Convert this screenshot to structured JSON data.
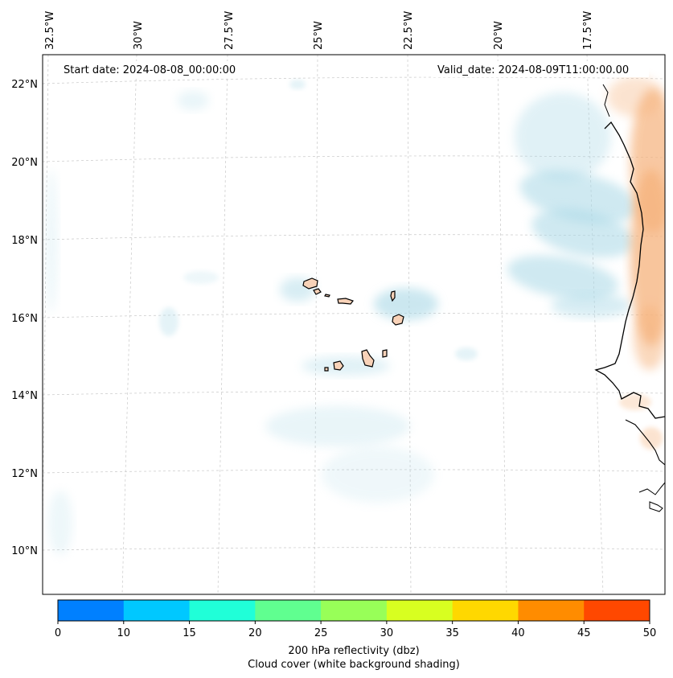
{
  "map": {
    "start_date": "Start date: 2024-08-08_00:00:00",
    "valid_date": "Valid_date: 2024-08-09T11:00:00.00",
    "longitude_labels": [
      "32.5°W",
      "30°W",
      "27.5°W",
      "25°W",
      "22.5°W",
      "20°W",
      "17.5°W"
    ],
    "latitude_labels": [
      "22°N",
      "20°N",
      "18°N",
      "16°N",
      "14°N",
      "12°N",
      "10°N"
    ],
    "colorbar": {
      "ticks": [
        "0",
        "10",
        "15",
        "20",
        "25",
        "30",
        "35",
        "40",
        "45",
        "50"
      ],
      "colors": [
        "#0080ff",
        "#00c8ff",
        "#20ffd8",
        "#60ff90",
        "#98ff58",
        "#d8ff20",
        "#ffd800",
        "#ff8c00",
        "#ff4800"
      ],
      "label_line1": "200 hPa reflectivity (dbz)",
      "label_line2": "Cloud cover (white background shading)"
    }
  }
}
